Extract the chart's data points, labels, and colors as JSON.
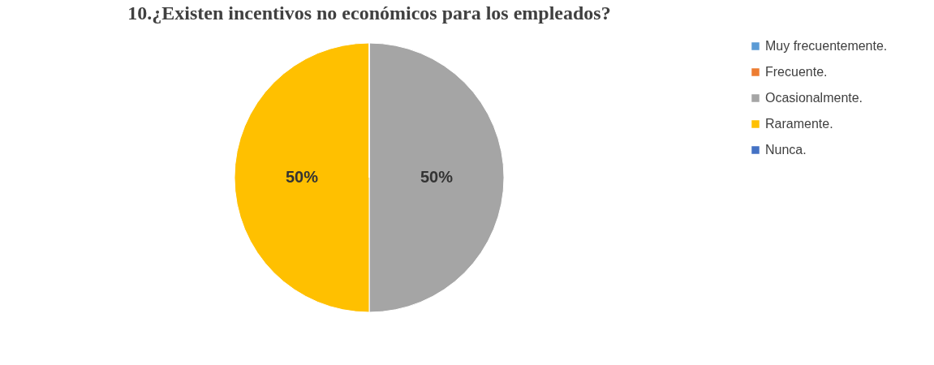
{
  "chart_data": {
    "type": "pie",
    "title": "10.¿Existen incentivos no económicos para los empleados?",
    "categories": [
      "Muy frecuentemente.",
      "Frecuente.",
      "Ocasionalmente.",
      "Raramente.",
      "Nunca."
    ],
    "values": [
      0,
      0,
      50,
      50,
      0
    ],
    "colors": [
      "#5b9bd5",
      "#ed7d31",
      "#a5a5a5",
      "#ffc000",
      "#4472c4"
    ],
    "value_labels": [
      null,
      null,
      "50%",
      "50%",
      null
    ],
    "legend": "right"
  }
}
